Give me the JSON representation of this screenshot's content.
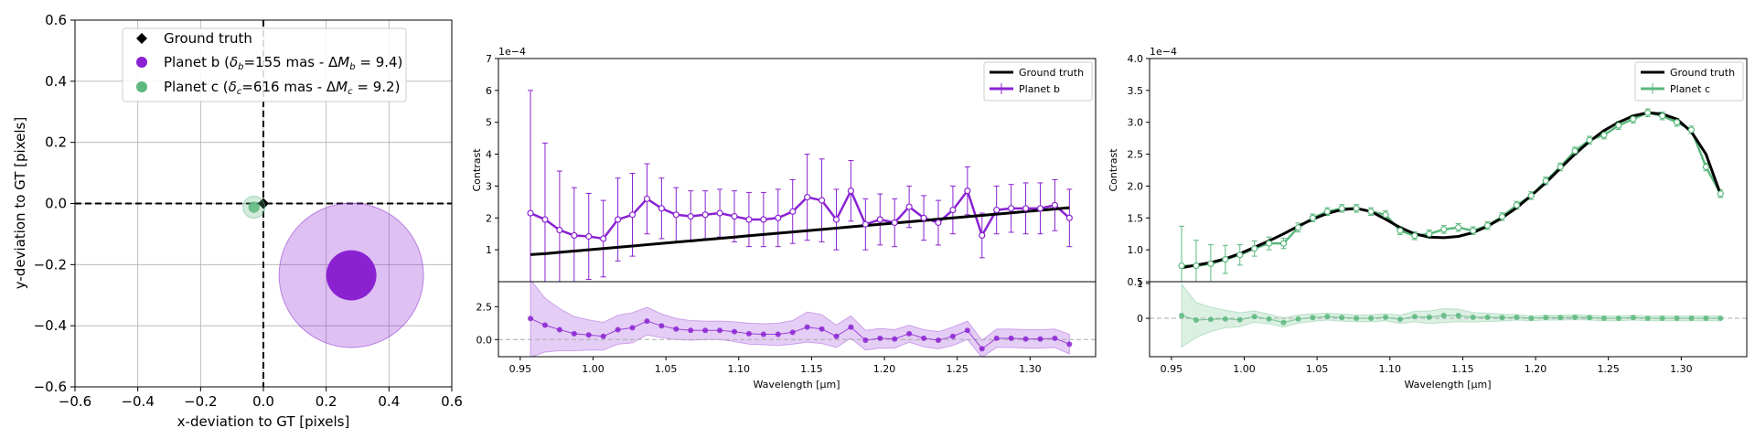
{
  "chart_data": [
    {
      "type": "scatter",
      "xlabel": "x-deviation to GT [pixels]",
      "ylabel": "y-deviation to GT [pixels]",
      "xlim": [
        -0.6,
        0.6
      ],
      "ylim": [
        -0.6,
        0.6
      ],
      "ticks": [
        "−0.6",
        "−0.4",
        "−0.2",
        "0.0",
        "0.2",
        "0.4",
        "0.6"
      ],
      "grid": true,
      "legend_position": "top-center",
      "legend": [
        {
          "label": "Ground truth",
          "color": "#000000",
          "marker": "diamond"
        },
        {
          "label_parts": [
            "Planet b (",
            "δ",
            "b",
            "=155 mas - Δ",
            "M",
            "b",
            " = 9.4)"
          ],
          "color": "#8a22d2",
          "marker": "circle"
        },
        {
          "label_parts": [
            "Planet c (",
            "δ",
            "c",
            "=616 mas - Δ",
            "M",
            "c",
            " = 9.2)"
          ],
          "color": "#5cb87e",
          "marker": "circle"
        }
      ],
      "points": [
        {
          "name": "Ground truth",
          "x": 0.0,
          "y": 0.0,
          "color": "#000000"
        },
        {
          "name": "Planet b",
          "x": 0.28,
          "y": -0.235,
          "uncertainty_radius_small": 0.08,
          "uncertainty_radius_large": 0.23,
          "color": "#8a22d2"
        },
        {
          "name": "Planet c",
          "x": -0.03,
          "y": -0.012,
          "uncertainty_radius_small": 0.018,
          "uncertainty_radius_large": 0.035,
          "color": "#5cb87e"
        }
      ]
    },
    {
      "type": "line",
      "xlabel": "Wavelength [μm]",
      "ylabel": "Contrast",
      "offset_text": "1e−4",
      "xlim": [
        0.935,
        1.345
      ],
      "ylim": [
        0,
        7
      ],
      "yticks": [
        "1",
        "2",
        "3",
        "4",
        "5",
        "6",
        "7"
      ],
      "xticks": [
        "0.95",
        "1.00",
        "1.05",
        "1.10",
        "1.15",
        "1.20",
        "1.25",
        "1.30"
      ],
      "legend_position": "top-right",
      "legend": [
        "Ground truth",
        "Planet b"
      ],
      "color": "#8a22d2",
      "x": [
        0.957,
        0.967,
        0.977,
        0.987,
        0.997,
        1.007,
        1.017,
        1.027,
        1.037,
        1.047,
        1.057,
        1.067,
        1.077,
        1.087,
        1.097,
        1.107,
        1.117,
        1.127,
        1.137,
        1.147,
        1.157,
        1.167,
        1.177,
        1.187,
        1.197,
        1.207,
        1.217,
        1.227,
        1.237,
        1.247,
        1.257,
        1.267,
        1.277,
        1.287,
        1.297,
        1.307,
        1.317,
        1.327
      ],
      "ground_truth": [
        0.85,
        0.88,
        0.92,
        0.96,
        1.0,
        1.04,
        1.08,
        1.12,
        1.16,
        1.2,
        1.24,
        1.28,
        1.32,
        1.36,
        1.4,
        1.44,
        1.48,
        1.52,
        1.56,
        1.6,
        1.64,
        1.68,
        1.72,
        1.76,
        1.8,
        1.84,
        1.88,
        1.92,
        1.96,
        2.0,
        2.04,
        2.08,
        2.12,
        2.16,
        2.2,
        2.24,
        2.28,
        2.32
      ],
      "values": [
        2.15,
        1.95,
        1.62,
        1.45,
        1.42,
        1.35,
        1.95,
        2.1,
        2.6,
        2.3,
        2.1,
        2.05,
        2.1,
        2.15,
        2.05,
        1.95,
        1.95,
        2.0,
        2.2,
        2.65,
        2.55,
        1.95,
        2.85,
        1.8,
        1.95,
        1.85,
        2.35,
        2.0,
        1.85,
        2.25,
        2.85,
        1.45,
        2.25,
        2.3,
        2.3,
        2.3,
        2.4,
        2.0
      ],
      "errors": [
        3.85,
        2.4,
        1.85,
        1.5,
        1.35,
        1.2,
        1.3,
        1.3,
        1.1,
        0.95,
        0.85,
        0.8,
        0.75,
        0.75,
        0.8,
        0.85,
        0.85,
        0.9,
        1.0,
        1.35,
        1.3,
        0.95,
        0.95,
        0.8,
        0.8,
        0.75,
        0.65,
        0.7,
        0.7,
        0.75,
        0.75,
        0.7,
        0.75,
        0.75,
        0.8,
        0.8,
        0.8,
        0.9
      ],
      "residual_panel": {
        "yticks": [
          "0.0",
          "2.5"
        ],
        "ylim": [
          -1.3,
          4.4
        ],
        "values": [
          1.6,
          1.1,
          0.75,
          0.45,
          0.35,
          0.25,
          0.75,
          0.9,
          1.4,
          1.05,
          0.8,
          0.7,
          0.7,
          0.7,
          0.6,
          0.45,
          0.4,
          0.4,
          0.55,
          0.95,
          0.8,
          0.25,
          0.95,
          -0.05,
          0.1,
          0.05,
          0.45,
          0.1,
          -0.05,
          0.25,
          0.7,
          -0.7,
          0.1,
          0.1,
          0.05,
          0.05,
          0.1,
          -0.35
        ],
        "band": [
          2.95,
          2.05,
          1.6,
          1.3,
          1.15,
          1.05,
          1.1,
          1.15,
          1.05,
          0.9,
          0.8,
          0.75,
          0.7,
          0.7,
          0.75,
          0.8,
          0.8,
          0.85,
          0.9,
          1.15,
          1.1,
          0.85,
          0.85,
          0.75,
          0.75,
          0.7,
          0.65,
          0.65,
          0.65,
          0.7,
          0.7,
          0.65,
          0.7,
          0.7,
          0.7,
          0.7,
          0.7,
          0.75
        ]
      }
    },
    {
      "type": "line",
      "xlabel": "Wavelength [μm]",
      "ylabel": "Contrast",
      "offset_text": "1e−4",
      "xlim": [
        0.935,
        1.345
      ],
      "ylim": [
        0.5,
        4.0
      ],
      "yticks": [
        "0.5",
        "1.0",
        "1.5",
        "2.0",
        "2.5",
        "3.0",
        "3.5",
        "4.0"
      ],
      "xticks": [
        "0.95",
        "1.00",
        "1.05",
        "1.10",
        "1.15",
        "1.20",
        "1.25",
        "1.30"
      ],
      "legend_position": "top-right",
      "legend": [
        "Ground truth",
        "Planet c"
      ],
      "color": "#5cb87e",
      "x": [
        0.957,
        0.967,
        0.977,
        0.987,
        0.997,
        1.007,
        1.017,
        1.027,
        1.037,
        1.047,
        1.057,
        1.067,
        1.077,
        1.087,
        1.097,
        1.107,
        1.117,
        1.127,
        1.137,
        1.147,
        1.157,
        1.167,
        1.177,
        1.187,
        1.197,
        1.207,
        1.217,
        1.227,
        1.237,
        1.247,
        1.257,
        1.267,
        1.277,
        1.287,
        1.297,
        1.307,
        1.317,
        1.327
      ],
      "ground_truth": [
        0.72,
        0.76,
        0.8,
        0.86,
        0.94,
        1.04,
        1.14,
        1.25,
        1.37,
        1.48,
        1.57,
        1.63,
        1.65,
        1.6,
        1.48,
        1.35,
        1.25,
        1.2,
        1.19,
        1.21,
        1.27,
        1.37,
        1.5,
        1.66,
        1.85,
        2.05,
        2.28,
        2.5,
        2.7,
        2.87,
        3.0,
        3.1,
        3.15,
        3.13,
        3.05,
        2.85,
        2.5,
        1.87
      ],
      "values": [
        0.75,
        0.75,
        0.78,
        0.85,
        0.92,
        1.02,
        1.1,
        1.1,
        1.35,
        1.5,
        1.6,
        1.65,
        1.65,
        1.6,
        1.55,
        1.3,
        1.22,
        1.25,
        1.32,
        1.35,
        1.3,
        1.38,
        1.52,
        1.7,
        1.85,
        2.08,
        2.3,
        2.55,
        2.72,
        2.8,
        2.95,
        3.05,
        3.15,
        3.1,
        3.0,
        2.88,
        2.3,
        1.88
      ],
      "errors": [
        0.62,
        0.4,
        0.3,
        0.22,
        0.16,
        0.12,
        0.1,
        0.08,
        0.07,
        0.06,
        0.06,
        0.06,
        0.06,
        0.06,
        0.06,
        0.06,
        0.06,
        0.06,
        0.06,
        0.06,
        0.06,
        0.06,
        0.06,
        0.06,
        0.06,
        0.06,
        0.06,
        0.06,
        0.06,
        0.06,
        0.06,
        0.06,
        0.06,
        0.06,
        0.06,
        0.06,
        0.06,
        0.06
      ],
      "residual_panel": {
        "yticks": [
          "0",
          "1"
        ],
        "ylim": [
          -1.1,
          1.05
        ],
        "values": [
          0.08,
          -0.05,
          -0.03,
          -0.02,
          -0.04,
          0.05,
          -0.02,
          -0.12,
          -0.02,
          0.02,
          0.05,
          0.02,
          0.0,
          0.0,
          0.03,
          -0.03,
          0.05,
          0.03,
          0.08,
          0.08,
          0.03,
          0.03,
          0.02,
          0.03,
          0.0,
          0.02,
          0.02,
          0.03,
          0.02,
          0.0,
          0.0,
          0.02,
          0.0,
          0.0,
          0.0,
          0.0,
          0.0,
          0.0
        ],
        "band": [
          0.9,
          0.5,
          0.35,
          0.25,
          0.2,
          0.16,
          0.14,
          0.13,
          0.12,
          0.11,
          0.1,
          0.1,
          0.1,
          0.1,
          0.1,
          0.12,
          0.15,
          0.18,
          0.2,
          0.18,
          0.14,
          0.12,
          0.1,
          0.08,
          0.07,
          0.07,
          0.07,
          0.07,
          0.07,
          0.07,
          0.07,
          0.07,
          0.07,
          0.07,
          0.07,
          0.07,
          0.07,
          0.07
        ]
      }
    }
  ]
}
